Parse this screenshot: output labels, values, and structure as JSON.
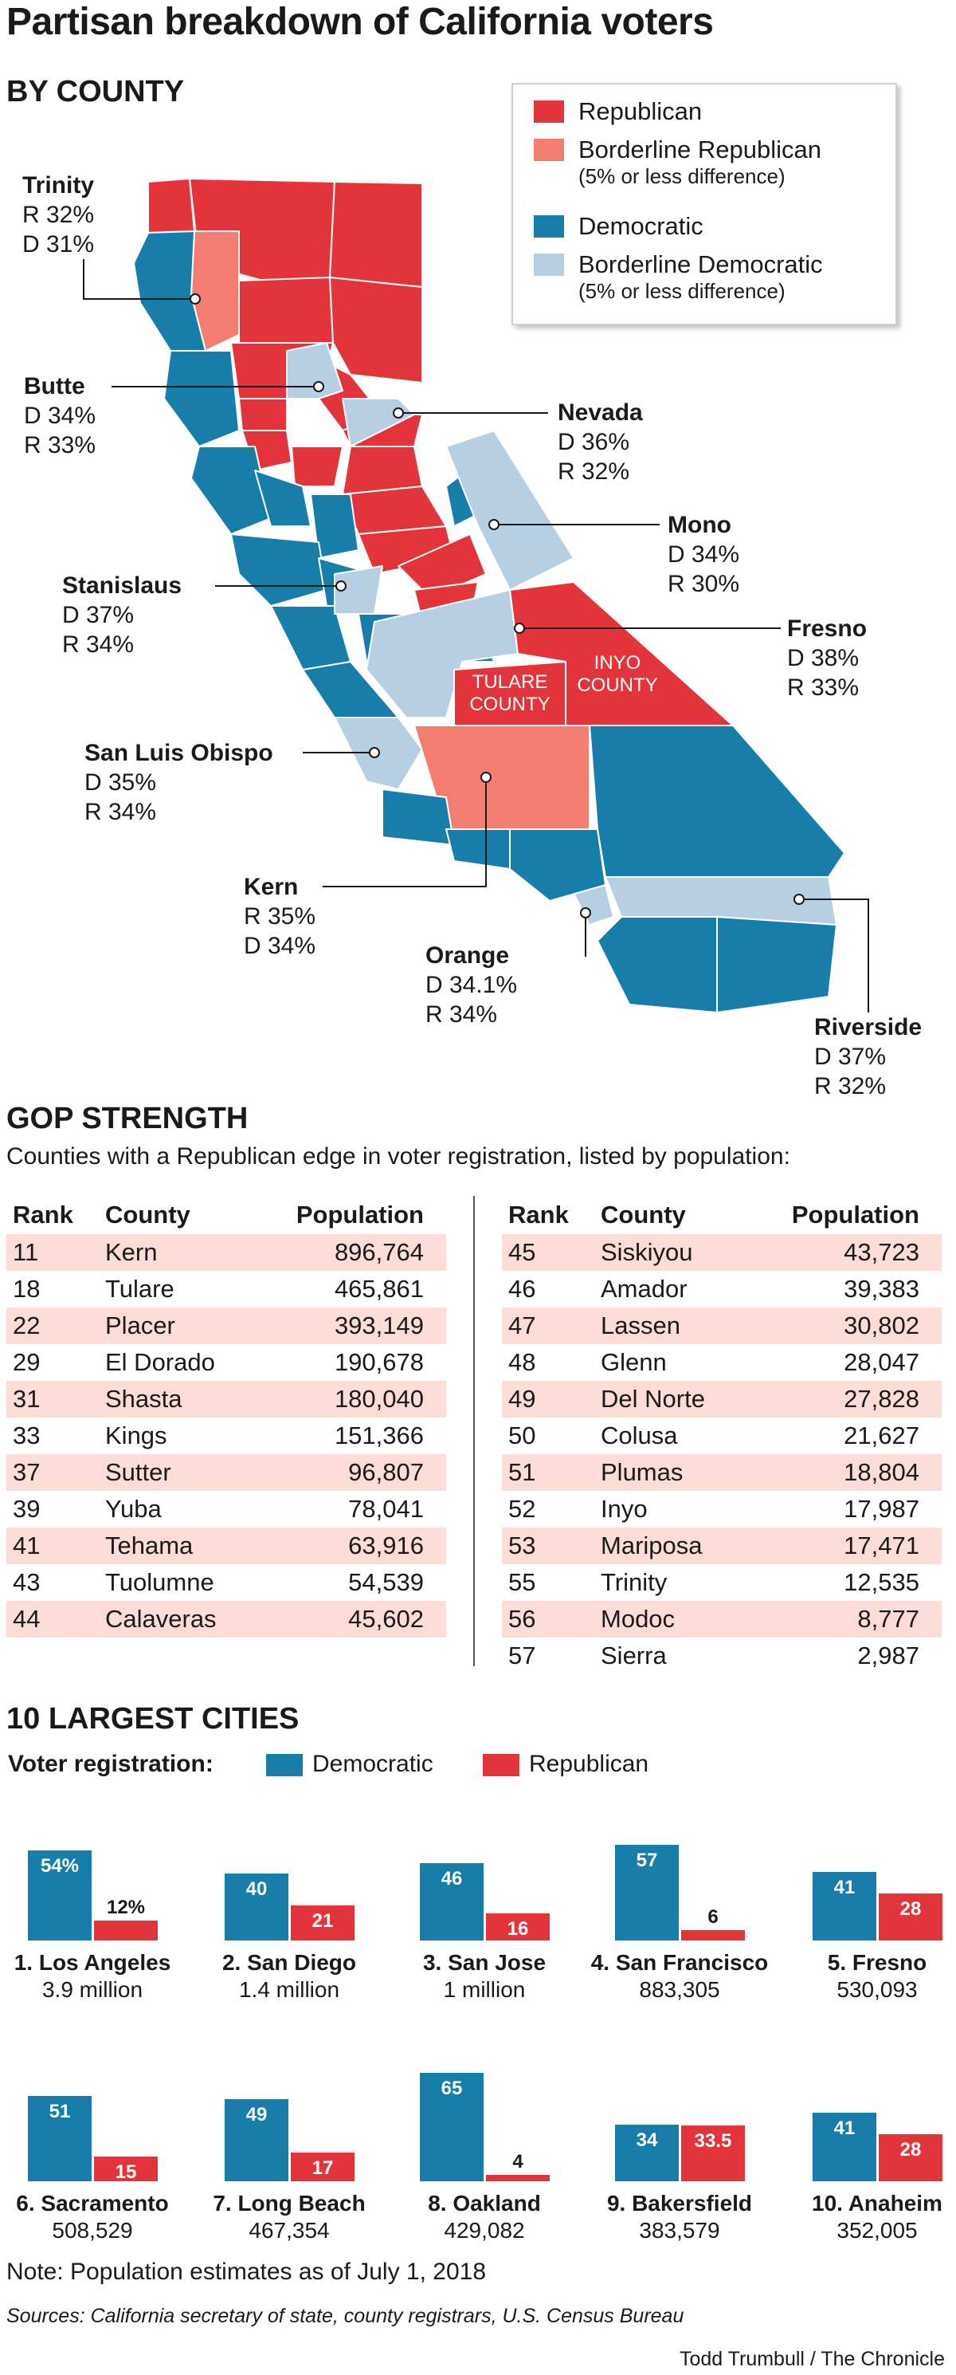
{
  "title": "Partisan breakdown of California voters",
  "colors": {
    "republican": "#e3343b",
    "borderline_republican": "#f47d72",
    "democratic": "#167ea8",
    "borderline_democratic": "#b6cfe2",
    "table_shade": "#fcdcd7"
  },
  "map": {
    "section_title": "BY COUNTY",
    "legend": [
      {
        "label": "Republican",
        "sub": "",
        "color_key": "republican"
      },
      {
        "label": "Borderline Republican",
        "sub": "(5% or less difference)",
        "color_key": "borderline_republican"
      },
      {
        "label": "Democratic",
        "sub": "",
        "color_key": "democratic"
      },
      {
        "label": "Borderline Democratic",
        "sub": "(5% or less difference)",
        "color_key": "borderline_democratic"
      }
    ],
    "map_labels": [
      "TULARE COUNTY",
      "INYO COUNTY"
    ],
    "callouts": [
      {
        "name": "Trinity",
        "line1": "R 32%",
        "line2": "D 31%"
      },
      {
        "name": "Butte",
        "line1": "D 34%",
        "line2": "R 33%"
      },
      {
        "name": "Nevada",
        "line1": "D 36%",
        "line2": "R 32%"
      },
      {
        "name": "Mono",
        "line1": "D 34%",
        "line2": "R 30%"
      },
      {
        "name": "Stanislaus",
        "line1": "D 37%",
        "line2": "R 34%"
      },
      {
        "name": "Fresno",
        "line1": "D 38%",
        "line2": "R 33%"
      },
      {
        "name": "San Luis Obispo",
        "line1": "D 35%",
        "line2": "R 34%"
      },
      {
        "name": "Kern",
        "line1": "R 35%",
        "line2": "D 34%"
      },
      {
        "name": "Orange",
        "line1": "D 34.1%",
        "line2": "R 34%"
      },
      {
        "name": "Riverside",
        "line1": "D 37%",
        "line2": "R 32%"
      }
    ]
  },
  "gop": {
    "section_title": "GOP STRENGTH",
    "intro": "Counties with a Republican edge in voter registration, listed by population:",
    "headers": {
      "rank": "Rank",
      "county": "County",
      "population": "Population"
    },
    "left_rows": [
      {
        "rank": "11",
        "county": "Kern",
        "population": "896,764"
      },
      {
        "rank": "18",
        "county": "Tulare",
        "population": "465,861"
      },
      {
        "rank": "22",
        "county": "Placer",
        "population": "393,149"
      },
      {
        "rank": "29",
        "county": "El Dorado",
        "population": "190,678"
      },
      {
        "rank": "31",
        "county": "Shasta",
        "population": "180,040"
      },
      {
        "rank": "33",
        "county": "Kings",
        "population": "151,366"
      },
      {
        "rank": "37",
        "county": "Sutter",
        "population": "96,807"
      },
      {
        "rank": "39",
        "county": "Yuba",
        "population": "78,041"
      },
      {
        "rank": "41",
        "county": "Tehama",
        "population": "63,916"
      },
      {
        "rank": "43",
        "county": "Tuolumne",
        "population": "54,539"
      },
      {
        "rank": "44",
        "county": "Calaveras",
        "population": "45,602"
      }
    ],
    "right_rows": [
      {
        "rank": "45",
        "county": "Siskiyou",
        "population": "43,723"
      },
      {
        "rank": "46",
        "county": "Amador",
        "population": "39,383"
      },
      {
        "rank": "47",
        "county": "Lassen",
        "population": "30,802"
      },
      {
        "rank": "48",
        "county": "Glenn",
        "population": "28,047"
      },
      {
        "rank": "49",
        "county": "Del Norte",
        "population": "27,828"
      },
      {
        "rank": "50",
        "county": "Colusa",
        "population": "21,627"
      },
      {
        "rank": "51",
        "county": "Plumas",
        "population": "18,804"
      },
      {
        "rank": "52",
        "county": "Inyo",
        "population": "17,987"
      },
      {
        "rank": "53",
        "county": "Mariposa",
        "population": "17,471"
      },
      {
        "rank": "55",
        "county": "Trinity",
        "population": "12,535"
      },
      {
        "rank": "56",
        "county": "Modoc",
        "population": "8,777"
      },
      {
        "rank": "57",
        "county": "Sierra",
        "population": "2,987"
      }
    ]
  },
  "cities": {
    "section_title": "10 LARGEST CITIES",
    "registration_label": "Voter registration:",
    "legend_dem": "Democratic",
    "legend_rep": "Republican"
  },
  "chart_data": {
    "type": "bar",
    "ylabel": "Voter registration (%)",
    "categories": [
      "1. Los Angeles",
      "2. San Diego",
      "3. San Jose",
      "4. San Francisco",
      "5. Fresno",
      "6. Sacramento",
      "7. Long Beach",
      "8. Oakland",
      "9. Bakersfield",
      "10. Anaheim"
    ],
    "populations": [
      "3.9 million",
      "1.4 million",
      "1 million",
      "883,305",
      "530,093",
      "508,529",
      "467,354",
      "429,082",
      "383,579",
      "352,005"
    ],
    "series": [
      {
        "name": "Democratic",
        "values": [
          54,
          40,
          46,
          57,
          41,
          51,
          49,
          65,
          34,
          41
        ],
        "labels": [
          "54%",
          "40",
          "46",
          "57",
          "41",
          "51",
          "49",
          "65",
          "34",
          "41"
        ]
      },
      {
        "name": "Republican",
        "values": [
          12,
          21,
          16,
          6,
          28,
          15,
          17,
          4,
          33.5,
          28
        ],
        "labels": [
          "12%",
          "21",
          "16",
          "6",
          "28",
          "15",
          "17",
          "4",
          "33.5",
          "28"
        ]
      }
    ]
  },
  "footer": {
    "note": "Note: Population estimates as of July 1, 2018",
    "sources": "Sources: California secretary of state, county registrars, U.S. Census Bureau",
    "credit": "Todd Trumbull / The Chronicle"
  }
}
